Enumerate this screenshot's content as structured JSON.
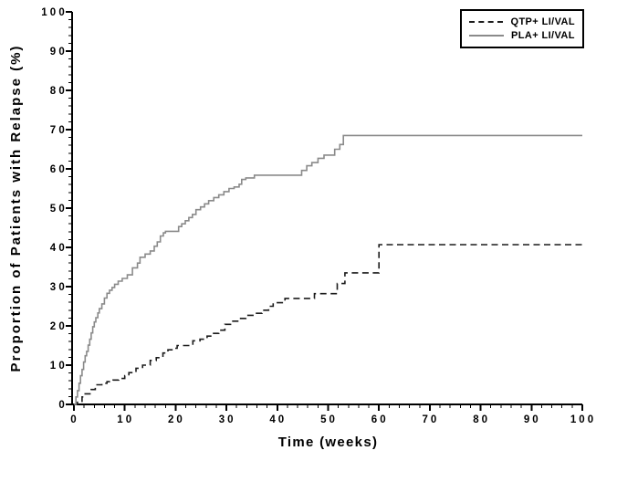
{
  "figure": {
    "background": "#ffffff"
  },
  "legend": {
    "position": "top-right",
    "entries": [
      {
        "label": "QTP+ LI/VAL",
        "style": "dashed",
        "color": "#1b1b1b"
      },
      {
        "label": "PLA+ LI/VAL",
        "style": "solid",
        "color": "#8a8a8a"
      }
    ]
  },
  "chart_data": {
    "type": "line",
    "subtype": "kaplan-meier-step",
    "title": "",
    "xlabel": "Time (weeks)",
    "ylabel": "Proportion of Patients with Relapse (%)",
    "xlim": [
      0,
      100
    ],
    "ylim": [
      0,
      100
    ],
    "x_ticks": [
      0,
      10,
      20,
      30,
      40,
      50,
      60,
      70,
      80,
      90,
      100
    ],
    "y_ticks": [
      0,
      10,
      20,
      30,
      40,
      50,
      60,
      70,
      80,
      90,
      100
    ],
    "x_minor_step": 2,
    "y_minor_step": 2,
    "grid": false,
    "legend_position": "top-right",
    "axis_color": "#000000",
    "series": [
      {
        "name": "QTP+ LI/VAL",
        "style": "dashed",
        "color": "#1b1b1b",
        "points": [
          [
            0,
            0
          ],
          [
            0.7,
            0.8
          ],
          [
            1.6,
            1.9
          ],
          [
            2.2,
            2.7
          ],
          [
            3.4,
            3.8
          ],
          [
            4.2,
            5.0
          ],
          [
            5.5,
            5.4
          ],
          [
            6.5,
            5.8
          ],
          [
            7.7,
            6.2
          ],
          [
            8.8,
            6.6
          ],
          [
            10,
            7.3
          ],
          [
            10.8,
            8.1
          ],
          [
            12.2,
            9.2
          ],
          [
            13.5,
            10.0
          ],
          [
            15,
            11.2
          ],
          [
            16.2,
            11.9
          ],
          [
            17.5,
            13.1
          ],
          [
            18.5,
            13.9
          ],
          [
            19.7,
            14.3
          ],
          [
            20.3,
            15.0
          ],
          [
            23.4,
            16.2
          ],
          [
            24.8,
            16.6
          ],
          [
            26.2,
            17.4
          ],
          [
            27.3,
            18.1
          ],
          [
            28.5,
            18.9
          ],
          [
            29.7,
            20.4
          ],
          [
            30.8,
            21.2
          ],
          [
            32.5,
            21.9
          ],
          [
            33.8,
            22.7
          ],
          [
            35.5,
            23.2
          ],
          [
            37,
            24.0
          ],
          [
            38.3,
            25.0
          ],
          [
            39.2,
            25.9
          ],
          [
            41.5,
            27.0
          ],
          [
            47.3,
            28.2
          ],
          [
            51.8,
            30.8
          ],
          [
            53.3,
            33.5
          ],
          [
            60,
            40.7
          ],
          [
            100,
            40.7
          ]
        ]
      },
      {
        "name": "PLA+ LI/VAL",
        "style": "solid",
        "color": "#8a8a8a",
        "points": [
          [
            0,
            0
          ],
          [
            0.4,
            1.9
          ],
          [
            0.7,
            3.5
          ],
          [
            1,
            5.4
          ],
          [
            1.3,
            7.3
          ],
          [
            1.6,
            8.9
          ],
          [
            1.9,
            10.8
          ],
          [
            2.2,
            12.4
          ],
          [
            2.5,
            13.5
          ],
          [
            2.8,
            15.1
          ],
          [
            3.1,
            16.6
          ],
          [
            3.4,
            18.2
          ],
          [
            3.7,
            19.8
          ],
          [
            4,
            21.0
          ],
          [
            4.3,
            22.1
          ],
          [
            4.7,
            23.3
          ],
          [
            5,
            24.4
          ],
          [
            5.5,
            25.6
          ],
          [
            6,
            27.1
          ],
          [
            6.5,
            28.3
          ],
          [
            7,
            29.1
          ],
          [
            7.5,
            29.8
          ],
          [
            8,
            30.6
          ],
          [
            8.7,
            31.4
          ],
          [
            9.5,
            32.1
          ],
          [
            10.5,
            33.0
          ],
          [
            11.5,
            34.8
          ],
          [
            12.5,
            36.0
          ],
          [
            13,
            37.5
          ],
          [
            14,
            38.3
          ],
          [
            15,
            39.1
          ],
          [
            15.8,
            40.3
          ],
          [
            16.4,
            41.4
          ],
          [
            17,
            42.9
          ],
          [
            17.6,
            43.7
          ],
          [
            18,
            44.1
          ],
          [
            20.6,
            45.3
          ],
          [
            21.2,
            46.0
          ],
          [
            21.9,
            46.8
          ],
          [
            22.6,
            47.6
          ],
          [
            23.3,
            48.4
          ],
          [
            24,
            49.6
          ],
          [
            24.9,
            50.3
          ],
          [
            25.7,
            51.1
          ],
          [
            26.5,
            51.9
          ],
          [
            27.5,
            52.7
          ],
          [
            28.5,
            53.4
          ],
          [
            29.5,
            54.2
          ],
          [
            30.5,
            55.0
          ],
          [
            31.5,
            55.4
          ],
          [
            32.5,
            56.1
          ],
          [
            33,
            57.3
          ],
          [
            33.8,
            57.7
          ],
          [
            35.5,
            58.4
          ],
          [
            44.8,
            59.6
          ],
          [
            45.8,
            60.8
          ],
          [
            46.8,
            61.6
          ],
          [
            48,
            62.7
          ],
          [
            49.2,
            63.5
          ],
          [
            51.3,
            65.0
          ],
          [
            52.3,
            66.2
          ],
          [
            53,
            68.5
          ],
          [
            100,
            68.5
          ]
        ]
      }
    ]
  }
}
